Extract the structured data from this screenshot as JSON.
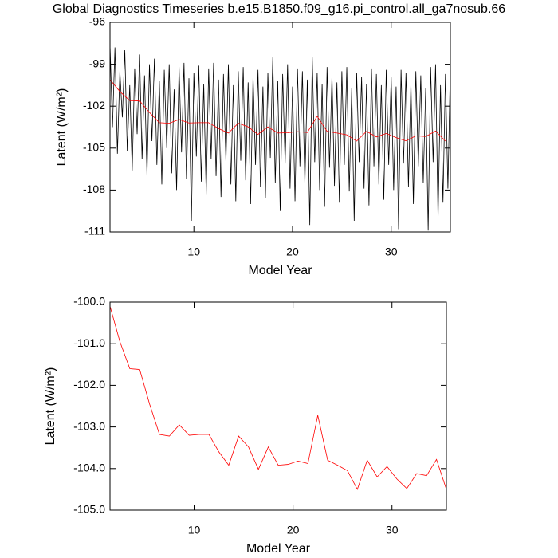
{
  "chart_data": [
    {
      "type": "line",
      "title": "Global Diagnostics Timeseries b.e15.B1850.f09_g16.pi_control.all_ga7nosub.66",
      "xlabel": "Model Year",
      "ylabel": "Latent (W/m²)",
      "xlim": [
        1.5,
        36.0
      ],
      "xticks": [
        10,
        20,
        30
      ],
      "ylim": [
        -111,
        -96
      ],
      "yticks": [
        -111,
        -108,
        -105,
        -102,
        -99,
        -96
      ],
      "series": [
        {
          "color": "#000000",
          "x": [
            1.5,
            1.75,
            2,
            2.25,
            2.5,
            2.75,
            3,
            3.25,
            3.5,
            3.75,
            4,
            4.25,
            4.5,
            4.75,
            5,
            5.25,
            5.5,
            5.75,
            6,
            6.25,
            6.5,
            6.75,
            7,
            7.25,
            7.5,
            7.75,
            8,
            8.25,
            8.5,
            8.75,
            9,
            9.25,
            9.5,
            9.75,
            10,
            10.25,
            10.5,
            10.75,
            11,
            11.25,
            11.5,
            11.75,
            12,
            12.25,
            12.5,
            12.75,
            13,
            13.25,
            13.5,
            13.75,
            14,
            14.25,
            14.5,
            14.75,
            15,
            15.25,
            15.5,
            15.75,
            16,
            16.25,
            16.5,
            16.75,
            17,
            17.25,
            17.5,
            17.75,
            18,
            18.25,
            18.5,
            18.75,
            19,
            19.25,
            19.5,
            19.75,
            20,
            20.25,
            20.5,
            20.75,
            21,
            21.25,
            21.5,
            21.75,
            22,
            22.25,
            22.5,
            22.75,
            23,
            23.25,
            23.5,
            23.75,
            24,
            24.25,
            24.5,
            24.75,
            25,
            25.25,
            25.5,
            25.75,
            26,
            26.25,
            26.5,
            26.75,
            27,
            27.25,
            27.5,
            27.75,
            28,
            28.25,
            28.5,
            28.75,
            29,
            29.25,
            29.5,
            29.75,
            30,
            30.25,
            30.5,
            30.75,
            31,
            31.25,
            31.5,
            31.75,
            32,
            32.25,
            32.5,
            32.75,
            33,
            33.25,
            33.5,
            33.75,
            34,
            34.25,
            34.5,
            34.75,
            35,
            35.25,
            35.5,
            35.75,
            36
          ],
          "values": [
            -97.6,
            -103.5,
            -97.8,
            -105.4,
            -99.5,
            -102.8,
            -98.0,
            -105.2,
            -100.5,
            -106.6,
            -99.3,
            -104.0,
            -98.3,
            -105.8,
            -99.8,
            -107.0,
            -99.0,
            -104.5,
            -98.6,
            -106.2,
            -100.2,
            -107.6,
            -99.4,
            -105.0,
            -99.0,
            -106.8,
            -100.8,
            -108.0,
            -99.2,
            -105.3,
            -98.9,
            -107.2,
            -100.0,
            -110.2,
            -99.6,
            -105.6,
            -99.1,
            -107.4,
            -100.4,
            -108.3,
            -99.3,
            -105.8,
            -98.9,
            -107.0,
            -100.1,
            -108.5,
            -99.7,
            -106.0,
            -99.0,
            -107.6,
            -100.5,
            -108.8,
            -99.5,
            -105.9,
            -99.2,
            -107.3,
            -100.3,
            -109.0,
            -99.8,
            -106.2,
            -99.4,
            -107.8,
            -100.6,
            -108.6,
            -99.6,
            -105.7,
            -98.5,
            -107.5,
            -100.2,
            -109.5,
            -99.7,
            -106.1,
            -99.0,
            -107.9,
            -100.6,
            -108.8,
            -99.3,
            -106.3,
            -99.5,
            -107.6,
            -100.1,
            -110.5,
            -98.5,
            -106.0,
            -99.6,
            -108.0,
            -100.4,
            -109.2,
            -99.2,
            -106.4,
            -99.8,
            -107.7,
            -100.3,
            -108.9,
            -99.5,
            -106.2,
            -99.2,
            -108.1,
            -100.7,
            -110.2,
            -99.6,
            -106.0,
            -99.9,
            -107.9,
            -100.4,
            -109.1,
            -99.3,
            -106.3,
            -99.7,
            -107.6,
            -100.5,
            -108.7,
            -99.4,
            -106.2,
            -99.9,
            -108.0,
            -100.6,
            -110.8,
            -99.4,
            -106.1,
            -99.6,
            -107.8,
            -100.3,
            -109.0,
            -99.5,
            -106.3,
            -99.8,
            -107.5,
            -100.7,
            -110.9,
            -99.2,
            -106.0,
            -99.0,
            -110.1,
            -100.5,
            -108.9,
            -99.7,
            -107.9,
            -99.1
          ]
        },
        {
          "color": "#ff0000",
          "x": [
            1.5,
            2.5,
            3.5,
            4.5,
            5.5,
            6.5,
            7.5,
            8.5,
            9.5,
            10.5,
            11.5,
            12.5,
            13.5,
            14.5,
            15.5,
            16.5,
            17.5,
            18.5,
            19.5,
            20.5,
            21.5,
            22.5,
            23.5,
            24.5,
            25.5,
            26.5,
            27.5,
            28.5,
            29.5,
            30.5,
            31.5,
            32.5,
            33.5,
            34.5,
            35.5
          ],
          "values": [
            -100.1,
            -100.95,
            -101.6,
            -101.62,
            -102.45,
            -103.18,
            -103.22,
            -102.95,
            -103.2,
            -103.18,
            -103.18,
            -103.6,
            -103.92,
            -103.22,
            -103.48,
            -104.02,
            -103.48,
            -103.92,
            -103.9,
            -103.82,
            -103.88,
            -102.72,
            -103.8,
            -103.92,
            -104.05,
            -104.5,
            -103.8,
            -104.2,
            -103.95,
            -104.25,
            -104.48,
            -104.12,
            -104.17,
            -103.78,
            -104.5
          ]
        }
      ]
    },
    {
      "type": "line",
      "xlabel": "Model Year",
      "ylabel": "Latent (W/m²)",
      "xlim": [
        1.5,
        35.5
      ],
      "xticks": [
        10,
        20,
        30
      ],
      "ylim": [
        -105,
        -100
      ],
      "yticks": [
        {
          "value": -105,
          "label": "-105.0"
        },
        {
          "value": -104,
          "label": "-104.0"
        },
        {
          "value": -103,
          "label": "-103.0"
        },
        {
          "value": -102,
          "label": "-102.0"
        },
        {
          "value": -101,
          "label": "-101.0"
        },
        {
          "value": -100,
          "label": "-100.0"
        }
      ],
      "series": [
        {
          "color": "#ff0000",
          "x": [
            1.5,
            2.5,
            3.5,
            4.5,
            5.5,
            6.5,
            7.5,
            8.5,
            9.5,
            10.5,
            11.5,
            12.5,
            13.5,
            14.5,
            15.5,
            16.5,
            17.5,
            18.5,
            19.5,
            20.5,
            21.5,
            22.5,
            23.5,
            24.5,
            25.5,
            26.5,
            27.5,
            28.5,
            29.5,
            30.5,
            31.5,
            32.5,
            33.5,
            34.5,
            35.5
          ],
          "values": [
            -100.1,
            -100.95,
            -101.6,
            -101.62,
            -102.45,
            -103.18,
            -103.22,
            -102.95,
            -103.2,
            -103.18,
            -103.18,
            -103.6,
            -103.92,
            -103.22,
            -103.48,
            -104.02,
            -103.48,
            -103.92,
            -103.9,
            -103.82,
            -103.88,
            -102.72,
            -103.8,
            -103.92,
            -104.05,
            -104.5,
            -103.8,
            -104.2,
            -103.95,
            -104.25,
            -104.48,
            -104.12,
            -104.17,
            -103.78,
            -104.5
          ]
        }
      ]
    }
  ]
}
